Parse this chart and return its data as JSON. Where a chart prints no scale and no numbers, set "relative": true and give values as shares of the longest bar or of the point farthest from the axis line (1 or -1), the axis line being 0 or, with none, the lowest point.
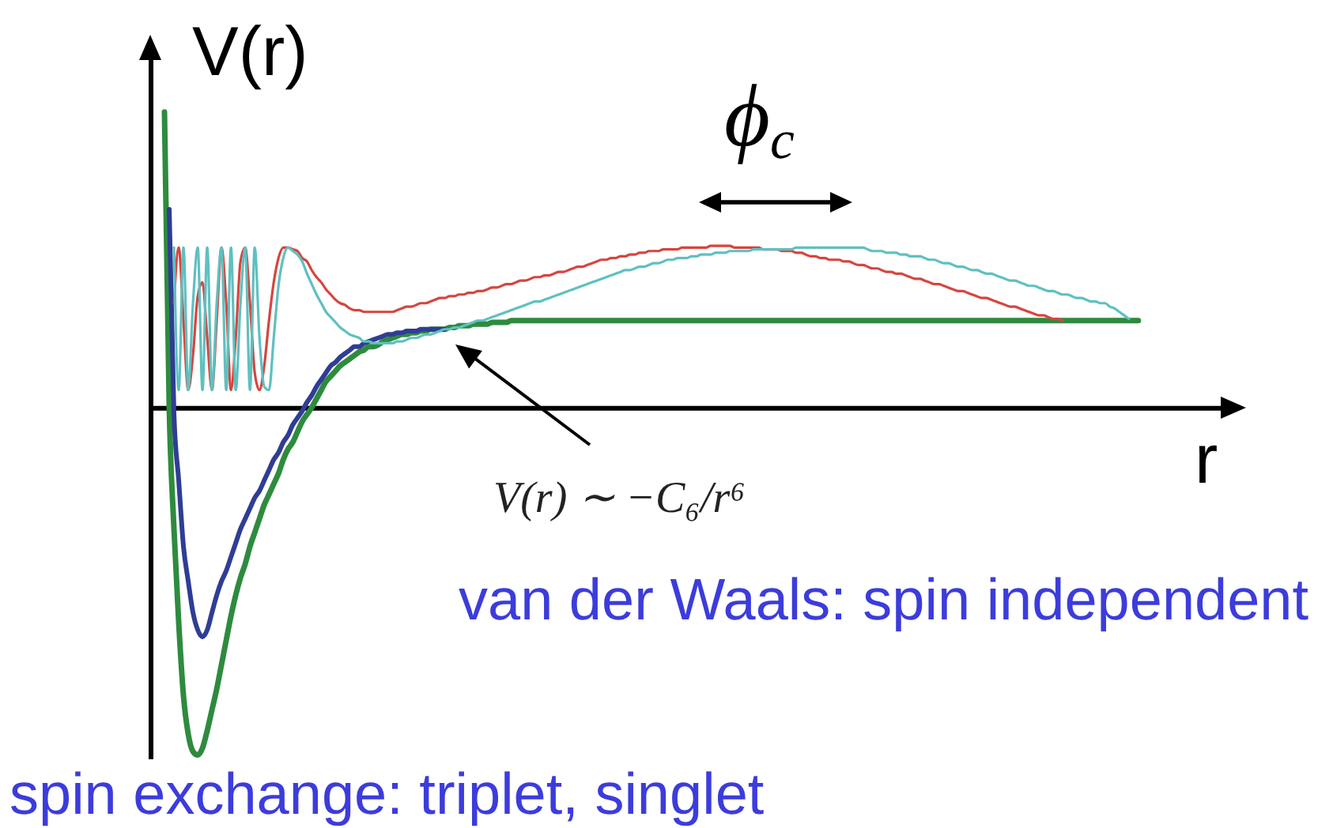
{
  "chart_data": {
    "type": "line",
    "relative": true,
    "ylabel": "V(r)",
    "xlabel": "r",
    "annotations": [
      "ϕ$_{c}$",
      "V(r) ∼ −C₆/r⁶",
      "van der Waals: spin independent",
      "spin exchange: triplet, singlet"
    ],
    "categories": [
      null,
      null,
      null,
      null,
      null,
      null,
      null,
      null,
      null,
      null,
      null,
      null,
      null,
      null,
      null,
      null,
      null,
      null,
      null,
      null,
      null,
      null,
      null,
      null,
      null,
      null,
      null,
      null,
      null,
      null,
      null,
      null,
      null,
      null,
      null,
      null,
      null,
      null,
      null,
      null,
      null,
      null,
      null,
      null,
      null,
      null,
      null,
      null,
      null,
      null,
      null,
      null,
      null,
      null,
      null,
      null,
      null,
      null,
      null,
      null,
      null,
      null,
      null,
      null,
      null,
      null,
      null,
      null,
      null,
      null,
      null,
      null,
      null,
      null,
      null,
      null,
      null,
      null,
      null,
      null,
      null,
      null,
      null,
      null,
      null,
      null,
      null,
      null,
      null,
      null,
      null,
      null,
      null,
      null,
      null,
      null,
      null,
      null,
      null,
      null,
      null,
      null,
      null,
      null,
      null,
      null,
      null,
      null,
      null,
      null,
      null,
      null,
      null,
      null,
      null,
      null,
      null,
      null,
      null,
      null,
      null,
      null,
      null,
      null,
      null,
      null,
      null,
      null,
      null,
      null,
      null,
      null,
      null,
      null,
      null,
      null,
      null,
      null,
      null,
      null,
      null,
      null,
      null,
      null,
      null,
      null,
      null,
      null,
      null,
      null,
      null,
      null,
      null,
      null,
      null,
      null,
      null,
      null,
      null,
      null,
      null,
      null,
      null,
      null,
      null,
      null,
      null,
      null,
      null,
      null,
      null,
      null,
      null,
      null,
      null,
      null,
      null,
      null,
      null,
      null,
      null,
      null,
      null,
      null,
      null,
      null,
      null,
      null,
      null,
      null,
      null,
      null,
      null,
      null,
      null,
      null,
      null,
      null,
      null,
      null,
      null,
      null,
      null,
      null,
      null,
      null,
      null,
      null,
      null,
      null,
      null,
      null,
      null,
      null,
      null,
      null,
      null,
      null,
      null,
      null,
      null,
      null,
      null,
      null,
      null,
      null,
      null,
      null,
      null
    ],
    "series": [
      {
        "color": "#2e8b3e",
        "values": [
          null,
          null,
          null,
          0.85,
          0,
          -0.35,
          -0.62,
          -0.83,
          -0.94,
          -0.99,
          -1,
          -0.98,
          -0.93,
          -0.87,
          -0.81,
          -0.74,
          -0.67,
          -0.6,
          -0.54,
          -0.49,
          -0.45,
          -0.4,
          -0.36,
          -0.32,
          -0.28,
          -0.25,
          -0.22,
          -0.19,
          -0.15,
          -0.12,
          -0.1,
          -0.07,
          -0.04,
          -0.02,
          0,
          0.025,
          0.05,
          0.075,
          0.09,
          0.105,
          0.12,
          0.13,
          0.14,
          0.15,
          0.16,
          0.165,
          0.175,
          0.175,
          0.18,
          0.19,
          0.195,
          0.2,
          0.205,
          0.21,
          0.21,
          0.215,
          0.215,
          0.22,
          0.22,
          0.225,
          0.225,
          0.225,
          0.225,
          0.23,
          0.23,
          0.235,
          0.235,
          0.235,
          0.24,
          0.24,
          0.24,
          0.24,
          0.245,
          0.245,
          0.245,
          0.245,
          0.25,
          0.25,
          0.25,
          0.25,
          0.25,
          0.25,
          0.25,
          0.25,
          0.25,
          0.25,
          0.25,
          0.25,
          0.25,
          0.25,
          0.25,
          0.25,
          0.25,
          0.25,
          0.25,
          0.25,
          0.25,
          0.25,
          0.25,
          0.25,
          0.25,
          0.25,
          0.25,
          0.25,
          0.25,
          0.25,
          0.25,
          0.25,
          0.25,
          0.25,
          0.25,
          0.25,
          0.25,
          0.25,
          0.25,
          0.25,
          0.25,
          0.25,
          0.25,
          0.25,
          0.25,
          0.25,
          0.25,
          0.25,
          0.25,
          0.25,
          0.25,
          0.25,
          0.25,
          0.25,
          0.25,
          0.25,
          0.25,
          0.25,
          0.25,
          0.25,
          0.25,
          0.25,
          0.25,
          0.25,
          0.25,
          0.25,
          0.25,
          0.25,
          0.25,
          0.25,
          0.25,
          0.25,
          0.25,
          0.25,
          0.25,
          0.25,
          0.25,
          0.25,
          0.25,
          0.25,
          0.25,
          0.25,
          0.25,
          0.25,
          0.25,
          0.25,
          0.25,
          0.25,
          0.25,
          0.25,
          0.25,
          0.25,
          0.25,
          0.25,
          0.25,
          0.25,
          0.25,
          0.25,
          0.25,
          0.25,
          0.25,
          0.25,
          0.25,
          0.25,
          0.25,
          0.25,
          0.25,
          0.25,
          0.25,
          0.25,
          0.25,
          0.25,
          0.25,
          0.25,
          0.25,
          0.25,
          0.25,
          0.25,
          0.25,
          0.25,
          0.25,
          0.25,
          0.25,
          0.25,
          0.25,
          0.25,
          0.25,
          0.25,
          0.25,
          0.25,
          0.25,
          0.25,
          0.25,
          null,
          null,
          null,
          null,
          null,
          null,
          null,
          null,
          null,
          null,
          null,
          null,
          null,
          null,
          null,
          null,
          null,
          null,
          null,
          null
        ]
      },
      {
        "color": "#2f3d94",
        "values": [
          null,
          null,
          null,
          null,
          0.57,
          -0.02,
          -0.21,
          -0.4,
          -0.5,
          -0.59,
          -0.64,
          -0.66,
          -0.64,
          -0.59,
          -0.54,
          -0.5,
          -0.47,
          -0.43,
          -0.39,
          -0.35,
          -0.32,
          -0.29,
          -0.26,
          -0.24,
          -0.21,
          -0.18,
          -0.15,
          -0.13,
          -0.1,
          -0.08,
          -0.05,
          -0.03,
          -0.01,
          0.015,
          0.035,
          0.06,
          0.08,
          0.1,
          0.12,
          0.13,
          0.145,
          0.155,
          0.165,
          0.175,
          0.175,
          0.185,
          0.19,
          0.195,
          0.2,
          0.205,
          0.21,
          0.21,
          0.215,
          0.215,
          0.22,
          0.22,
          0.22,
          0.225,
          0.225,
          0.225,
          0.225,
          0.225,
          0.225,
          null,
          null,
          null,
          null,
          null,
          null,
          null,
          null,
          null,
          null,
          null,
          null,
          null,
          null,
          null,
          null,
          null,
          null,
          null,
          null,
          null,
          null,
          null,
          null,
          null,
          null,
          null,
          null,
          null,
          null,
          null,
          null,
          null,
          null,
          null,
          null,
          null,
          null,
          null,
          null,
          null,
          null,
          null,
          null,
          null,
          null,
          null,
          null,
          null,
          null,
          null,
          null,
          null,
          null,
          null,
          null,
          null,
          null,
          null,
          null,
          null,
          null,
          null,
          null,
          null,
          null,
          null,
          null,
          null,
          null,
          null,
          null,
          null,
          null,
          null,
          null,
          null,
          null,
          null,
          null,
          null,
          null,
          null,
          null,
          null,
          null,
          null,
          null,
          null,
          null,
          null,
          null,
          null,
          null,
          null,
          null,
          null,
          null,
          null,
          null,
          null,
          null,
          null,
          null,
          null,
          null,
          null,
          null,
          null,
          null,
          null,
          null,
          null,
          null,
          null,
          null,
          null,
          null,
          null,
          null,
          null,
          null,
          null,
          null,
          null,
          null,
          null,
          null,
          null,
          null,
          null,
          null,
          null,
          null,
          null,
          null,
          null,
          null,
          null,
          null,
          null,
          null,
          null,
          null,
          null,
          null,
          null,
          null,
          null,
          null,
          null,
          null,
          null,
          null,
          null,
          null,
          null,
          null,
          null,
          null,
          null,
          null,
          null,
          null,
          null,
          null
        ]
      },
      {
        "color": "#d6453f",
        "values": [
          null,
          null,
          null,
          null,
          null,
          0.3,
          0.46,
          0.25,
          0.05,
          0.15,
          0.32,
          0.36,
          0.2,
          0.05,
          0.25,
          0.46,
          0.3,
          0.05,
          0.2,
          0.42,
          0.46,
          0.3,
          0.1,
          0.05,
          0.12,
          0.25,
          0.36,
          0.43,
          0.46,
          0.46,
          0.455,
          0.45,
          0.43,
          0.42,
          0.395,
          0.375,
          0.36,
          0.34,
          0.325,
          0.31,
          0.3,
          0.295,
          0.285,
          0.28,
          0.28,
          0.275,
          0.275,
          0.275,
          0.275,
          0.275,
          0.275,
          0.275,
          0.28,
          0.285,
          0.29,
          0.29,
          0.295,
          0.3,
          0.3,
          0.305,
          0.31,
          0.315,
          0.315,
          0.32,
          0.32,
          0.325,
          0.325,
          0.33,
          0.33,
          0.335,
          0.335,
          0.34,
          0.345,
          0.345,
          0.35,
          0.355,
          0.355,
          0.36,
          0.365,
          0.365,
          0.37,
          0.375,
          0.375,
          0.38,
          0.38,
          0.385,
          0.39,
          0.39,
          0.395,
          0.4,
          0.405,
          0.405,
          0.41,
          0.415,
          0.42,
          0.425,
          0.425,
          0.43,
          0.43,
          0.435,
          0.435,
          0.44,
          0.44,
          0.445,
          0.445,
          0.45,
          0.45,
          0.45,
          0.455,
          0.455,
          0.455,
          0.455,
          0.46,
          0.46,
          0.46,
          0.46,
          0.46,
          0.46,
          0.465,
          0.465,
          0.465,
          0.465,
          0.465,
          0.46,
          0.46,
          0.46,
          0.46,
          0.46,
          0.46,
          0.455,
          0.455,
          0.455,
          0.455,
          0.45,
          0.45,
          0.45,
          0.445,
          0.445,
          0.44,
          0.435,
          0.435,
          0.43,
          0.43,
          0.425,
          0.425,
          0.425,
          0.42,
          0.42,
          0.415,
          0.41,
          0.41,
          0.405,
          0.4,
          0.4,
          0.395,
          0.39,
          0.39,
          0.385,
          0.385,
          0.38,
          0.375,
          0.37,
          0.37,
          0.365,
          0.36,
          0.355,
          0.355,
          0.35,
          0.345,
          0.34,
          0.335,
          0.335,
          0.33,
          0.325,
          0.32,
          0.315,
          0.315,
          0.31,
          0.305,
          0.3,
          0.295,
          0.29,
          0.29,
          0.285,
          0.28,
          0.275,
          0.27,
          0.265,
          0.265,
          0.26,
          0.255,
          0.255,
          0.25,
          null,
          null,
          null,
          null,
          null,
          null,
          null,
          null,
          null,
          null,
          null,
          null,
          null,
          null,
          null,
          null,
          null,
          null,
          null,
          null,
          null,
          null,
          null,
          null,
          null,
          null,
          null,
          null,
          null,
          null,
          null,
          null,
          null,
          null,
          null,
          null
        ]
      },
      {
        "color": "#5fc0c0",
        "values": [
          null,
          null,
          null,
          null,
          null,
          0.46,
          0.05,
          0.46,
          0.05,
          0.3,
          0.46,
          0.05,
          0.46,
          0.05,
          0.3,
          0.46,
          0.05,
          0.46,
          0.05,
          0.3,
          0.46,
          0.05,
          0.46,
          0.2,
          0.06,
          0.05,
          0.2,
          0.35,
          0.43,
          0.46,
          0.45,
          0.44,
          0.42,
          0.385,
          0.355,
          0.325,
          0.3,
          0.275,
          0.26,
          0.245,
          0.23,
          0.22,
          0.21,
          0.205,
          0.2,
          0.19,
          0.19,
          0.185,
          0.185,
          0.185,
          0.185,
          0.185,
          0.19,
          0.19,
          0.195,
          0.2,
          0.2,
          0.205,
          0.21,
          0.21,
          0.215,
          0.22,
          0.225,
          0.225,
          0.23,
          0.23,
          0.235,
          0.24,
          0.245,
          0.25,
          0.25,
          0.255,
          0.26,
          0.265,
          0.27,
          0.275,
          0.28,
          0.285,
          0.29,
          0.295,
          0.3,
          0.305,
          0.305,
          0.31,
          0.315,
          0.32,
          0.325,
          0.33,
          0.335,
          0.34,
          0.345,
          0.35,
          0.355,
          0.36,
          0.365,
          0.37,
          0.375,
          0.38,
          0.385,
          0.39,
          0.395,
          0.395,
          0.4,
          0.405,
          0.405,
          0.41,
          0.415,
          0.415,
          0.42,
          0.425,
          0.425,
          0.43,
          0.43,
          0.43,
          0.435,
          0.435,
          0.44,
          0.44,
          0.44,
          0.445,
          0.445,
          0.445,
          0.45,
          0.45,
          0.45,
          0.45,
          0.45,
          0.455,
          0.455,
          0.455,
          0.455,
          0.455,
          0.455,
          0.455,
          0.455,
          0.455,
          0.46,
          0.46,
          0.46,
          0.46,
          0.46,
          0.46,
          0.46,
          0.46,
          0.46,
          0.46,
          0.46,
          0.46,
          0.46,
          0.46,
          0.46,
          0.455,
          0.45,
          0.45,
          0.45,
          0.445,
          0.445,
          0.445,
          0.44,
          0.44,
          0.435,
          0.435,
          0.435,
          0.43,
          0.425,
          0.425,
          0.42,
          0.415,
          0.415,
          0.41,
          0.405,
          0.405,
          0.4,
          0.395,
          0.395,
          0.39,
          0.385,
          0.385,
          0.38,
          0.375,
          0.37,
          0.365,
          0.365,
          0.36,
          0.355,
          0.35,
          0.35,
          0.345,
          0.34,
          0.335,
          0.335,
          0.33,
          0.325,
          0.325,
          0.32,
          0.315,
          0.315,
          0.31,
          0.305,
          0.305,
          0.3,
          0.3,
          0.29,
          0.285,
          0.275,
          0.265,
          0.255,
          null,
          null,
          null,
          null,
          null,
          null,
          null,
          null,
          null,
          null,
          null,
          null,
          null,
          null,
          null,
          null,
          null,
          null,
          null,
          null,
          null,
          null
        ]
      }
    ]
  }
}
